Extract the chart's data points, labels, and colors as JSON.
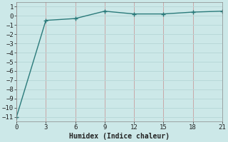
{
  "x": [
    0,
    3,
    6,
    9,
    12,
    15,
    18,
    21
  ],
  "y": [
    -11,
    -0.5,
    -0.3,
    0.5,
    0.2,
    0.2,
    0.4,
    0.5
  ],
  "line_color": "#2a7a7a",
  "bg_color": "#cce8e8",
  "vgrid_color": "#c8a8a8",
  "hgrid_color": "#b8d8d8",
  "xlabel": "Humidex (Indice chaleur)",
  "xlim": [
    0,
    21
  ],
  "ylim": [
    -11.5,
    1.5
  ],
  "xticks": [
    0,
    3,
    6,
    9,
    12,
    15,
    18,
    21
  ],
  "yticks": [
    1,
    0,
    -1,
    -2,
    -3,
    -4,
    -5,
    -6,
    -7,
    -8,
    -9,
    -10,
    -11
  ],
  "marker": "+",
  "tick_fontsize": 6.5,
  "xlabel_fontsize": 7.0
}
